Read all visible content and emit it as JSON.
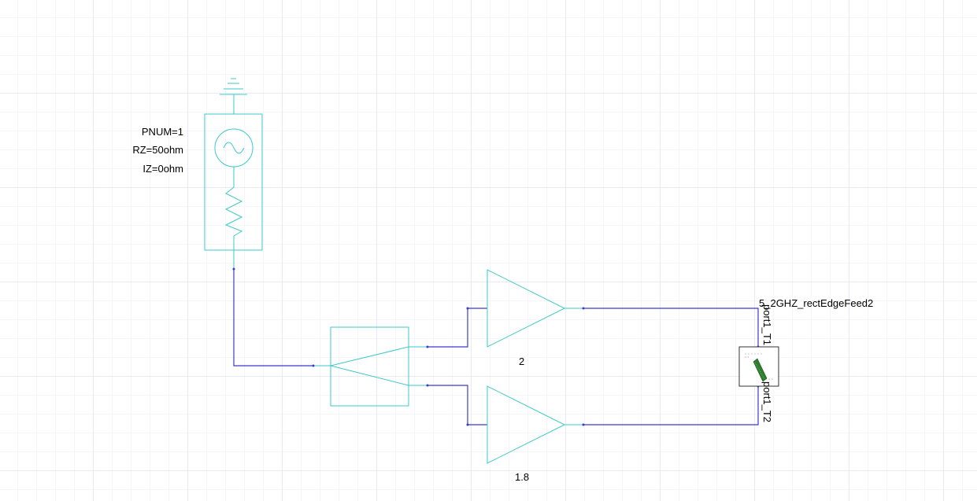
{
  "port_source": {
    "params": [
      "PNUM=1",
      "RZ=50ohm",
      "IZ=0ohm"
    ]
  },
  "amplifiers": {
    "top_gain": "2",
    "bottom_gain": "1.8"
  },
  "subcircuit": {
    "name": "5_2GHZ_rectEdgeFeed2",
    "port_top": "port1_T1",
    "port_bottom": "port1_T2"
  },
  "colors": {
    "component": "#3ec9c9",
    "wire": "#3b3bc8",
    "grid": "#e6ebf4"
  }
}
